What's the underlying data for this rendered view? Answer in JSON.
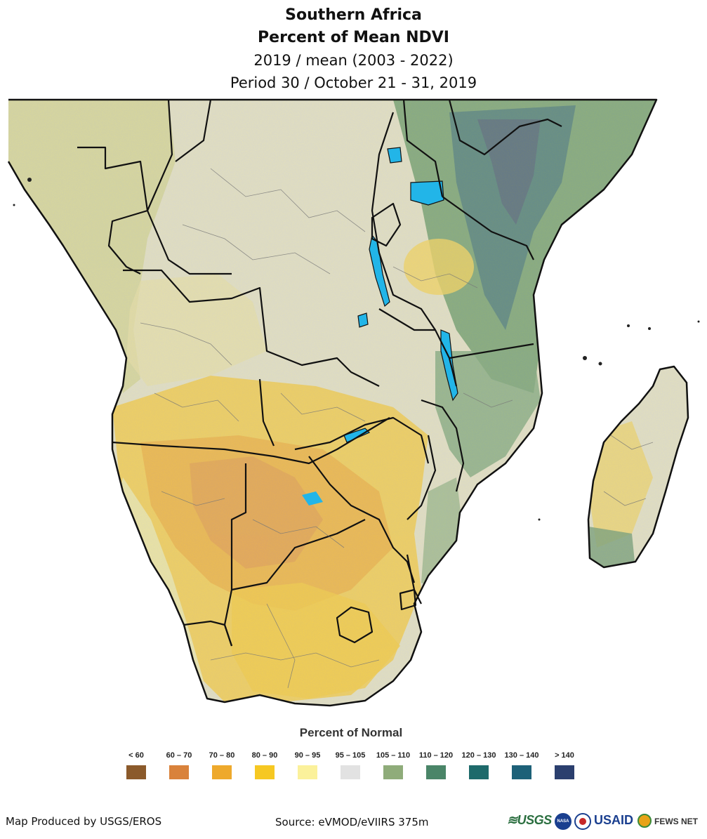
{
  "title": {
    "region": "Southern Africa",
    "product": "Percent of Mean NDVI",
    "comparison": "2019 / mean (2003 - 2022)",
    "period": "Period 30 / October 21 - 31, 2019"
  },
  "legend": {
    "title": "Percent of Normal",
    "classes": [
      {
        "label": "< 60",
        "color": "#8b5a2b"
      },
      {
        "label": "60 – 70",
        "color": "#d9823b"
      },
      {
        "label": "70 – 80",
        "color": "#eea92c"
      },
      {
        "label": "80 – 90",
        "color": "#f6c822"
      },
      {
        "label": "90 – 95",
        "color": "#fbf19b"
      },
      {
        "label": "95 – 105",
        "color": "#e2e2e2"
      },
      {
        "label": "105 – 110",
        "color": "#8fac7a"
      },
      {
        "label": "110 – 120",
        "color": "#4a8568"
      },
      {
        "label": "120 – 130",
        "color": "#1e6a6b"
      },
      {
        "label": "130 – 140",
        "color": "#1d6178"
      },
      {
        "label": "> 140",
        "color": "#2b3f6e"
      }
    ]
  },
  "footer": {
    "producer": "Map Produced by USGS/EROS",
    "source": "Source: eVMOD/eVIIRS 375m",
    "logos": {
      "usgs": "≋USGS",
      "nasa": "NASA",
      "usaid": "USAID",
      "fews": "FEWS NET"
    }
  },
  "colors": {
    "water": "#22b5e8",
    "border": "#111111",
    "admin": "#777777"
  }
}
